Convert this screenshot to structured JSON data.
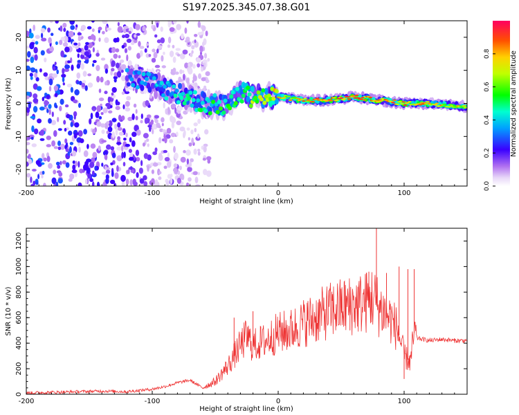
{
  "figure_title": "S197.2025.345.07.38.G01",
  "chart_data": [
    {
      "type": "heatmap",
      "title": "",
      "xlabel": "Height of straight line (km)",
      "ylabel": "Frequency (Hz)",
      "xlim": [
        -200,
        150
      ],
      "ylim": [
        -25,
        25
      ],
      "xticks": [
        -200,
        -100,
        0,
        100
      ],
      "yticks": [
        -20,
        -10,
        0,
        10,
        20
      ],
      "colorbar": {
        "label": "Normalized spectral amplitude",
        "range": [
          0,
          1
        ],
        "ticks": [
          0.0,
          0.2,
          0.4,
          0.6,
          0.8
        ],
        "tick_labels": [
          "0.0",
          "0.2",
          "0.4",
          "0.6",
          "0.8"
        ]
      },
      "ridge": [
        {
          "x": -120,
          "y": 8,
          "amp": 0.3
        },
        {
          "x": -100,
          "y": 6,
          "amp": 0.35
        },
        {
          "x": -80,
          "y": 3,
          "amp": 0.4
        },
        {
          "x": -60,
          "y": 0,
          "amp": 0.45
        },
        {
          "x": -40,
          "y": -1,
          "amp": 0.5
        },
        {
          "x": -30,
          "y": 3,
          "amp": 0.55
        },
        {
          "x": -20,
          "y": 2,
          "amp": 0.6
        },
        {
          "x": 0,
          "y": 2,
          "amp": 0.7
        },
        {
          "x": 20,
          "y": 1,
          "amp": 0.75
        },
        {
          "x": 40,
          "y": 1,
          "amp": 0.8
        },
        {
          "x": 60,
          "y": 2,
          "amp": 0.85
        },
        {
          "x": 80,
          "y": 1,
          "amp": 0.8
        },
        {
          "x": 100,
          "y": 0,
          "amp": 0.8
        },
        {
          "x": 120,
          "y": 0,
          "amp": 0.75
        },
        {
          "x": 150,
          "y": -1,
          "amp": 0.7
        }
      ],
      "noise_region": {
        "x_from": -200,
        "x_to": -55
      }
    },
    {
      "type": "line",
      "title": "",
      "xlabel": "Height of straight line (km)",
      "ylabel": "SNR (10 * v/v)",
      "xlim": [
        -200,
        150
      ],
      "ylim": [
        0,
        1300
      ],
      "xticks": [
        -200,
        -100,
        0,
        100
      ],
      "yticks": [
        0,
        200,
        400,
        600,
        800,
        1000,
        1200
      ],
      "series": [
        {
          "name": "SNR",
          "color": "#ee3333",
          "x": [
            -200,
            -160,
            -140,
            -120,
            -100,
            -90,
            -80,
            -70,
            -60,
            -50,
            -40,
            -30,
            -25,
            -20,
            -10,
            0,
            10,
            20,
            30,
            40,
            50,
            60,
            70,
            75,
            80,
            85,
            90,
            95,
            100,
            105,
            108,
            110,
            120,
            130,
            140,
            150
          ],
          "y": [
            10,
            20,
            25,
            20,
            40,
            60,
            90,
            110,
            50,
            100,
            220,
            380,
            450,
            380,
            420,
            480,
            500,
            560,
            600,
            650,
            680,
            700,
            720,
            760,
            680,
            640,
            580,
            500,
            300,
            250,
            480,
            440,
            420,
            430,
            420,
            420
          ]
        }
      ],
      "spikes": [
        {
          "x": -35,
          "y": 600
        },
        {
          "x": -20,
          "y": 650
        },
        {
          "x": 57,
          "y": 500
        },
        {
          "x": 70,
          "y": 950
        },
        {
          "x": 72,
          "y": 960
        },
        {
          "x": 78,
          "y": 1300
        },
        {
          "x": 86,
          "y": 950
        },
        {
          "x": 96,
          "y": 1000
        },
        {
          "x": 100,
          "y": 120
        },
        {
          "x": 103,
          "y": 980
        },
        {
          "x": 108,
          "y": 980
        }
      ]
    }
  ]
}
